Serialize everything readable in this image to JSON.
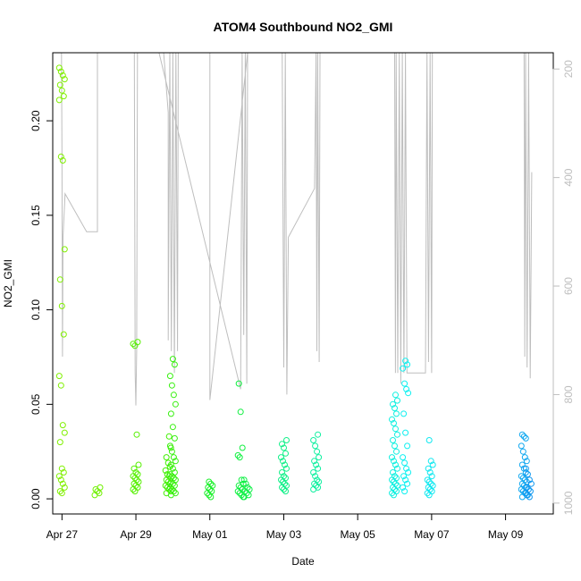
{
  "chart_data": {
    "type": "scatter",
    "title": "ATOM4 Southbound NO2_GMI",
    "xlabel": "Date",
    "ylabel": "NO2_GMI",
    "x_range": [
      "2018-04-26T18:00",
      "2018-05-10T07:00"
    ],
    "ylim": [
      -0.008,
      0.236
    ],
    "y2lim": [
      1020,
      170
    ],
    "y2_inverted": true,
    "x_ticks": [
      {
        "date": "2018-04-27",
        "label": "Apr 27"
      },
      {
        "date": "2018-04-29",
        "label": "Apr 29"
      },
      {
        "date": "2018-05-01",
        "label": "May 01"
      },
      {
        "date": "2018-05-03",
        "label": "May 03"
      },
      {
        "date": "2018-05-05",
        "label": "May 05"
      },
      {
        "date": "2018-05-07",
        "label": "May 07"
      },
      {
        "date": "2018-05-09",
        "label": "May 09"
      }
    ],
    "y_ticks": [
      0.0,
      0.05,
      0.1,
      0.15,
      0.2
    ],
    "y_tick_labels": [
      "0.00",
      "0.05",
      "0.10",
      "0.15",
      "0.20"
    ],
    "y2_ticks": [
      200,
      400,
      600,
      800,
      1000
    ],
    "y2_tick_labels": [
      "200",
      "400",
      "600",
      "800",
      "1000"
    ],
    "grid": false,
    "legend": "none",
    "colors": {
      "pressure_line": "#bebebe",
      "axis": "#000000",
      "right_axis": "#bebebe"
    },
    "point_groups": [
      {
        "time": "2018-04-27T00:00",
        "values": [
          0.228,
          0.226,
          0.224,
          0.222,
          0.219,
          0.216,
          0.213,
          0.211,
          0.181,
          0.179,
          0.132,
          0.116,
          0.102,
          0.087,
          0.065,
          0.06,
          0.039,
          0.035,
          0.03,
          0.016,
          0.014,
          0.012,
          0.01,
          0.008,
          0.006,
          0.004,
          0.003
        ],
        "color": "#80f000"
      },
      {
        "time": "2018-04-27T23:00",
        "values": [
          0.006,
          0.005,
          0.004,
          0.003,
          0.002
        ],
        "color": "#70f000"
      },
      {
        "time": "2018-04-29T00:00",
        "values": [
          0.083,
          0.082,
          0.081,
          0.034,
          0.018,
          0.016,
          0.014,
          0.013,
          0.012,
          0.011,
          0.01,
          0.009,
          0.008,
          0.007,
          0.006,
          0.005,
          0.004
        ],
        "color": "#55f000"
      },
      {
        "time": "2018-04-29T21:00",
        "values": [
          0.033,
          0.027,
          0.022,
          0.019,
          0.017,
          0.015,
          0.013,
          0.012,
          0.011,
          0.01,
          0.009,
          0.008,
          0.007,
          0.006,
          0.005,
          0.004,
          0.003
        ],
        "color": "#40f000"
      },
      {
        "time": "2018-04-30T00:00",
        "values": [
          0.074,
          0.071,
          0.065,
          0.06,
          0.055,
          0.05,
          0.045,
          0.038,
          0.032,
          0.028,
          0.025,
          0.022,
          0.02,
          0.018,
          0.016,
          0.014,
          0.013,
          0.012,
          0.011,
          0.01,
          0.009,
          0.008,
          0.007,
          0.006,
          0.005,
          0.004,
          0.003,
          0.002
        ],
        "color": "#38f010"
      },
      {
        "time": "2018-05-01T00:00",
        "values": [
          0.009,
          0.008,
          0.007,
          0.006,
          0.005,
          0.004,
          0.003,
          0.002,
          0.001
        ],
        "color": "#18f028"
      },
      {
        "time": "2018-05-01T20:00",
        "values": [
          0.061,
          0.046,
          0.027,
          0.023,
          0.022,
          0.01,
          0.008,
          0.007,
          0.006,
          0.005,
          0.004,
          0.003,
          0.002,
          0.001
        ],
        "color": "#10f040"
      },
      {
        "time": "2018-05-02T00:00",
        "values": [
          0.01,
          0.008,
          0.006,
          0.005,
          0.004,
          0.003,
          0.002,
          0.001
        ],
        "color": "#10f048"
      },
      {
        "time": "2018-05-03T00:00",
        "values": [
          0.031,
          0.029,
          0.027,
          0.024,
          0.022,
          0.02,
          0.018,
          0.016,
          0.014,
          0.012,
          0.011,
          0.01,
          0.009,
          0.008,
          0.007,
          0.006,
          0.005,
          0.004
        ],
        "color": "#10f088"
      },
      {
        "time": "2018-05-03T21:00",
        "values": [
          0.034,
          0.031,
          0.028,
          0.025,
          0.022,
          0.02,
          0.018,
          0.016,
          0.014,
          0.012,
          0.01,
          0.009,
          0.008,
          0.007,
          0.006,
          0.005
        ],
        "color": "#10f0a0"
      },
      {
        "time": "2018-05-06T00:00",
        "values": [
          0.055,
          0.052,
          0.05,
          0.048,
          0.045,
          0.042,
          0.04,
          0.037,
          0.034,
          0.031,
          0.028,
          0.025,
          0.022,
          0.02,
          0.018,
          0.016,
          0.014,
          0.012,
          0.011,
          0.01,
          0.009,
          0.008,
          0.007,
          0.006,
          0.005,
          0.004,
          0.003,
          0.002
        ],
        "color": "#10f0e0"
      },
      {
        "time": "2018-05-06T07:00",
        "values": [
          0.073,
          0.071,
          0.069,
          0.061,
          0.058,
          0.056,
          0.045,
          0.035,
          0.028,
          0.022,
          0.019,
          0.016,
          0.014,
          0.012,
          0.01,
          0.008,
          0.006,
          0.004
        ],
        "color": "#10f0f0"
      },
      {
        "time": "2018-05-06T23:00",
        "values": [
          0.031,
          0.02,
          0.018,
          0.016,
          0.014,
          0.012,
          0.01,
          0.009,
          0.008,
          0.007,
          0.006,
          0.005,
          0.004,
          0.003,
          0.002
        ],
        "color": "#10e8f0"
      },
      {
        "time": "2018-05-09T12:00",
        "values": [
          0.034,
          0.033,
          0.032,
          0.028,
          0.025,
          0.022,
          0.02,
          0.018,
          0.016,
          0.014,
          0.012,
          0.011,
          0.01,
          0.009,
          0.008,
          0.007,
          0.006,
          0.005,
          0.004,
          0.003,
          0.002,
          0.001
        ],
        "color": "#10a8f0"
      },
      {
        "time": "2018-05-09T15:00",
        "values": [
          0.016,
          0.013,
          0.01,
          0.008,
          0.006,
          0.005,
          0.004,
          0.003,
          0.002,
          0.001
        ],
        "color": "#1098f0"
      }
    ],
    "pressure_path": [
      [
        "2018-04-26T23:40",
        170
      ],
      [
        "2018-04-27T00:00",
        350
      ],
      [
        "2018-04-27T00:20",
        730
      ],
      [
        "2018-04-27T00:40",
        510
      ],
      [
        "2018-04-27T02:00",
        430
      ],
      [
        "2018-04-27T16:00",
        500
      ],
      [
        "2018-04-27T23:00",
        500
      ],
      [
        "2018-04-27T23:00",
        170
      ],
      [
        "2018-04-28T23:00",
        170
      ],
      [
        "2018-04-28T23:30",
        760
      ],
      [
        "2018-04-29T00:00",
        820
      ],
      [
        "2018-04-29T00:30",
        720
      ],
      [
        "2018-04-29T01:00",
        170
      ],
      [
        "2018-04-29T18:00",
        170
      ],
      [
        "2018-04-29T21:00",
        280
      ],
      [
        "2018-04-29T21:00",
        700
      ],
      [
        "2018-04-29T22:00",
        170
      ],
      [
        "2018-04-29T23:00",
        720
      ],
      [
        "2018-04-30T00:00",
        170
      ],
      [
        "2018-04-30T01:00",
        760
      ],
      [
        "2018-04-30T02:00",
        170
      ],
      [
        "2018-04-30T03:00",
        720
      ],
      [
        "2018-04-30T03:30",
        170
      ],
      [
        "2018-04-29T15:00",
        170
      ],
      [
        "2018-05-01T20:00",
        790
      ],
      [
        "2018-05-01T21:00",
        170
      ],
      [
        "2018-05-01T22:00",
        690
      ],
      [
        "2018-05-01T23:00",
        170
      ],
      [
        "2018-05-02T00:00",
        780
      ],
      [
        "2018-05-02T00:30",
        170
      ],
      [
        "2018-05-01T00:00",
        810
      ],
      [
        "2018-05-01T00:00",
        170
      ],
      [
        "2018-05-02T23:00",
        170
      ],
      [
        "2018-05-03T00:00",
        750
      ],
      [
        "2018-05-03T01:00",
        170
      ],
      [
        "2018-05-03T02:00",
        800
      ],
      [
        "2018-05-03T03:00",
        510
      ],
      [
        "2018-05-03T20:00",
        420
      ],
      [
        "2018-05-03T21:00",
        170
      ],
      [
        "2018-05-03T21:30",
        720
      ],
      [
        "2018-05-03T22:00",
        170
      ],
      [
        "2018-05-03T23:00",
        740
      ],
      [
        "2018-05-03T23:30",
        170
      ],
      [
        "2018-05-06T00:00",
        170
      ],
      [
        "2018-05-06T00:30",
        760
      ],
      [
        "2018-05-06T01:00",
        170
      ],
      [
        "2018-05-06T02:00",
        760
      ],
      [
        "2018-05-06T03:00",
        170
      ],
      [
        "2018-05-06T04:00",
        780
      ],
      [
        "2018-05-06T05:00",
        170
      ],
      [
        "2018-05-06T06:00",
        760
      ],
      [
        "2018-05-06T07:00",
        170
      ],
      [
        "2018-05-06T08:00",
        760
      ],
      [
        "2018-05-06T20:00",
        760
      ],
      [
        "2018-05-06T21:00",
        170
      ],
      [
        "2018-05-06T22:00",
        740
      ],
      [
        "2018-05-06T23:00",
        170
      ],
      [
        "2018-05-07T00:00",
        760
      ],
      [
        "2018-05-07T00:30",
        170
      ],
      [
        "2018-05-09T12:00",
        170
      ],
      [
        "2018-05-09T12:30",
        730
      ],
      [
        "2018-05-09T13:00",
        170
      ],
      [
        "2018-05-09T14:00",
        750
      ],
      [
        "2018-05-09T15:00",
        170
      ],
      [
        "2018-05-09T16:00",
        770
      ],
      [
        "2018-05-09T17:00",
        390
      ]
    ]
  }
}
